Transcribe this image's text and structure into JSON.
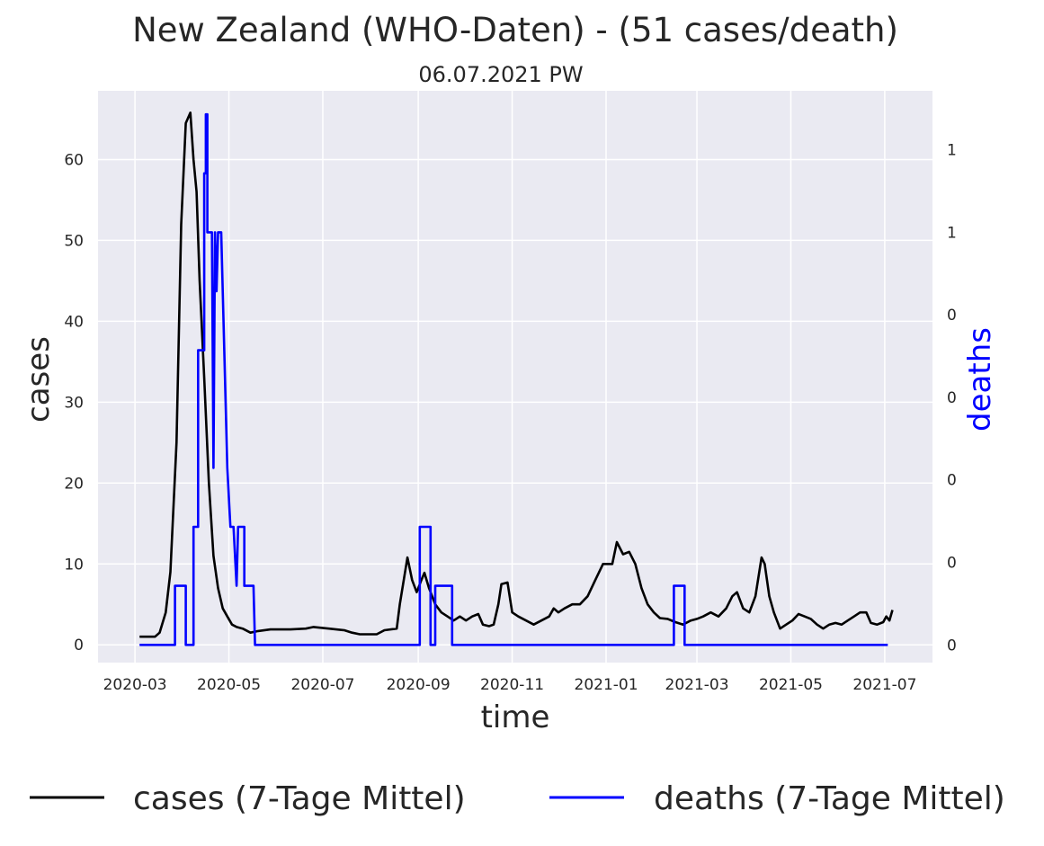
{
  "chart_data": {
    "type": "line",
    "title": "New Zealand (WHO-Daten) - (51 cases/death)",
    "subtitle": "06.07.2021 PW",
    "xlabel": "time",
    "ylabel_left": "cases",
    "ylabel_right": "deaths",
    "x_ticks": [
      "2020-03",
      "2020-05",
      "2020-07",
      "2020-09",
      "2020-11",
      "2021-01",
      "2021-03",
      "2021-05",
      "2021-07"
    ],
    "y_left_ticks": [
      0,
      10,
      20,
      30,
      40,
      50,
      60
    ],
    "y_left_lim": [
      -2.2,
      68.5
    ],
    "y_right_tick_labels": [
      "0",
      "0",
      "0",
      "0",
      "0",
      "1",
      "1"
    ],
    "y_right_lim": [
      -0.043,
      1.343
    ],
    "grid": true,
    "legend_position": "bottom",
    "colors": {
      "background": "#eaeaf2",
      "grid": "#ffffff",
      "cases": "#000000",
      "deaths": "#0000ff",
      "right_axis_label": "#0000ff"
    },
    "series": [
      {
        "name": "cases (7-Tage Mittel)",
        "color": "#000000",
        "points": [
          [
            "2020-03-04",
            1.0
          ],
          [
            "2020-03-14",
            1.0
          ],
          [
            "2020-03-17",
            1.5
          ],
          [
            "2020-03-21",
            4
          ],
          [
            "2020-03-24",
            9
          ],
          [
            "2020-03-28",
            25
          ],
          [
            "2020-03-31",
            52
          ],
          [
            "2020-04-03",
            64.5
          ],
          [
            "2020-04-06",
            65.8
          ],
          [
            "2020-04-08",
            60
          ],
          [
            "2020-04-10",
            56
          ],
          [
            "2020-04-12",
            45
          ],
          [
            "2020-04-15",
            33
          ],
          [
            "2020-04-18",
            20
          ],
          [
            "2020-04-21",
            11
          ],
          [
            "2020-04-24",
            7
          ],
          [
            "2020-04-27",
            4.5
          ],
          [
            "2020-04-30",
            3.5
          ],
          [
            "2020-05-03",
            2.5
          ],
          [
            "2020-05-06",
            2.2
          ],
          [
            "2020-05-10",
            2.0
          ],
          [
            "2020-05-15",
            1.5
          ],
          [
            "2020-05-20",
            1.7
          ],
          [
            "2020-05-28",
            1.9
          ],
          [
            "2020-06-10",
            1.9
          ],
          [
            "2020-06-20",
            2.0
          ],
          [
            "2020-06-25",
            2.2
          ],
          [
            "2020-07-05",
            2.0
          ],
          [
            "2020-07-15",
            1.8
          ],
          [
            "2020-07-20",
            1.5
          ],
          [
            "2020-07-25",
            1.3
          ],
          [
            "2020-08-05",
            1.3
          ],
          [
            "2020-08-10",
            1.8
          ],
          [
            "2020-08-18",
            2
          ],
          [
            "2020-08-20",
            5
          ],
          [
            "2020-08-25",
            10.8
          ],
          [
            "2020-08-28",
            8
          ],
          [
            "2020-08-31",
            6.5
          ],
          [
            "2020-09-03",
            8
          ],
          [
            "2020-09-05",
            8.9
          ],
          [
            "2020-09-08",
            7
          ],
          [
            "2020-09-12",
            5
          ],
          [
            "2020-09-16",
            4.0
          ],
          [
            "2020-09-20",
            3.5
          ],
          [
            "2020-09-24",
            3
          ],
          [
            "2020-09-28",
            3.5
          ],
          [
            "2020-10-02",
            3
          ],
          [
            "2020-10-06",
            3.5
          ],
          [
            "2020-10-10",
            3.8
          ],
          [
            "2020-10-13",
            2.5
          ],
          [
            "2020-10-17",
            2.3
          ],
          [
            "2020-10-20",
            2.5
          ],
          [
            "2020-10-23",
            5
          ],
          [
            "2020-10-25",
            7.5
          ],
          [
            "2020-10-29",
            7.7
          ],
          [
            "2020-11-01",
            4
          ],
          [
            "2020-11-05",
            3.5
          ],
          [
            "2020-11-10",
            3.0
          ],
          [
            "2020-11-15",
            2.5
          ],
          [
            "2020-11-20",
            3
          ],
          [
            "2020-11-25",
            3.5
          ],
          [
            "2020-11-28",
            4.5
          ],
          [
            "2020-12-01",
            4
          ],
          [
            "2020-12-05",
            4.5
          ],
          [
            "2020-12-10",
            5
          ],
          [
            "2020-12-15",
            5
          ],
          [
            "2020-12-20",
            6
          ],
          [
            "2020-12-25",
            8
          ],
          [
            "2020-12-30",
            10.0
          ],
          [
            "2021-01-05",
            10.0
          ],
          [
            "2021-01-08",
            12.7
          ],
          [
            "2021-01-12",
            11.2
          ],
          [
            "2021-01-16",
            11.5
          ],
          [
            "2021-01-20",
            10
          ],
          [
            "2021-01-24",
            7
          ],
          [
            "2021-01-28",
            5
          ],
          [
            "2021-02-01",
            4
          ],
          [
            "2021-02-05",
            3.3
          ],
          [
            "2021-02-10",
            3.2
          ],
          [
            "2021-02-15",
            2.8
          ],
          [
            "2021-02-20",
            2.5
          ],
          [
            "2021-02-25",
            3
          ],
          [
            "2021-03-01",
            3.2
          ],
          [
            "2021-03-05",
            3.5
          ],
          [
            "2021-03-10",
            4.0
          ],
          [
            "2021-03-15",
            3.5
          ],
          [
            "2021-03-20",
            4.5
          ],
          [
            "2021-03-24",
            6
          ],
          [
            "2021-03-27",
            6.5
          ],
          [
            "2021-03-31",
            4.5
          ],
          [
            "2021-04-04",
            4
          ],
          [
            "2021-04-08",
            6
          ],
          [
            "2021-04-12",
            10.8
          ],
          [
            "2021-04-14",
            10
          ],
          [
            "2021-04-17",
            6
          ],
          [
            "2021-04-20",
            4
          ],
          [
            "2021-04-24",
            2.0
          ],
          [
            "2021-04-28",
            2.5
          ],
          [
            "2021-05-02",
            3.0
          ],
          [
            "2021-05-06",
            3.8
          ],
          [
            "2021-05-10",
            3.5
          ],
          [
            "2021-05-14",
            3.2
          ],
          [
            "2021-05-18",
            2.5
          ],
          [
            "2021-05-22",
            2.0
          ],
          [
            "2021-05-26",
            2.5
          ],
          [
            "2021-05-30",
            2.7
          ],
          [
            "2021-06-03",
            2.5
          ],
          [
            "2021-06-07",
            3
          ],
          [
            "2021-06-11",
            3.5
          ],
          [
            "2021-06-15",
            4.0
          ],
          [
            "2021-06-19",
            4.0
          ],
          [
            "2021-06-22",
            2.7
          ],
          [
            "2021-06-26",
            2.5
          ],
          [
            "2021-06-30",
            2.8
          ],
          [
            "2021-07-02",
            3.5
          ],
          [
            "2021-07-04",
            3.0
          ],
          [
            "2021-07-06",
            4.3
          ]
        ]
      },
      {
        "name": "deaths (7-Tage Mittel)",
        "color": "#0000ff",
        "points": [
          [
            "2020-03-04",
            0.0
          ],
          [
            "2020-03-27",
            0.0
          ],
          [
            "2020-03-27",
            0.143
          ],
          [
            "2020-04-03",
            0.143
          ],
          [
            "2020-04-03",
            0.0
          ],
          [
            "2020-04-08",
            0.0
          ],
          [
            "2020-04-08",
            0.286
          ],
          [
            "2020-04-11",
            0.286
          ],
          [
            "2020-04-11",
            0.714
          ],
          [
            "2020-04-15",
            0.714
          ],
          [
            "2020-04-15",
            1.143
          ],
          [
            "2020-04-16",
            1.143
          ],
          [
            "2020-04-16",
            1.286
          ],
          [
            "2020-04-17",
            1.286
          ],
          [
            "2020-04-17",
            1.0
          ],
          [
            "2020-04-20",
            1.0
          ],
          [
            "2020-04-21",
            0.429
          ],
          [
            "2020-04-22",
            1.0
          ],
          [
            "2020-04-23",
            0.857
          ],
          [
            "2020-04-24",
            1.0
          ],
          [
            "2020-04-26",
            1.0
          ],
          [
            "2020-04-28",
            0.714
          ],
          [
            "2020-04-30",
            0.429
          ],
          [
            "2020-05-02",
            0.286
          ],
          [
            "2020-05-04",
            0.286
          ],
          [
            "2020-05-06",
            0.143
          ],
          [
            "2020-05-07",
            0.286
          ],
          [
            "2020-05-11",
            0.286
          ],
          [
            "2020-05-11",
            0.143
          ],
          [
            "2020-05-17",
            0.143
          ],
          [
            "2020-05-18",
            0.0
          ],
          [
            "2020-09-02",
            0.0
          ],
          [
            "2020-09-02",
            0.286
          ],
          [
            "2020-09-09",
            0.286
          ],
          [
            "2020-09-09",
            0.0
          ],
          [
            "2020-09-12",
            0.0
          ],
          [
            "2020-09-12",
            0.143
          ],
          [
            "2020-09-23",
            0.143
          ],
          [
            "2020-09-23",
            0.0
          ],
          [
            "2021-02-14",
            0.0
          ],
          [
            "2021-02-14",
            0.143
          ],
          [
            "2021-02-21",
            0.143
          ],
          [
            "2021-02-21",
            0.0
          ],
          [
            "2021-07-03",
            0.0
          ]
        ]
      }
    ]
  },
  "legend": [
    {
      "label": "cases (7-Tage Mittel)",
      "color": "#000000"
    },
    {
      "label": "deaths (7-Tage Mittel)",
      "color": "#0000ff"
    }
  ]
}
